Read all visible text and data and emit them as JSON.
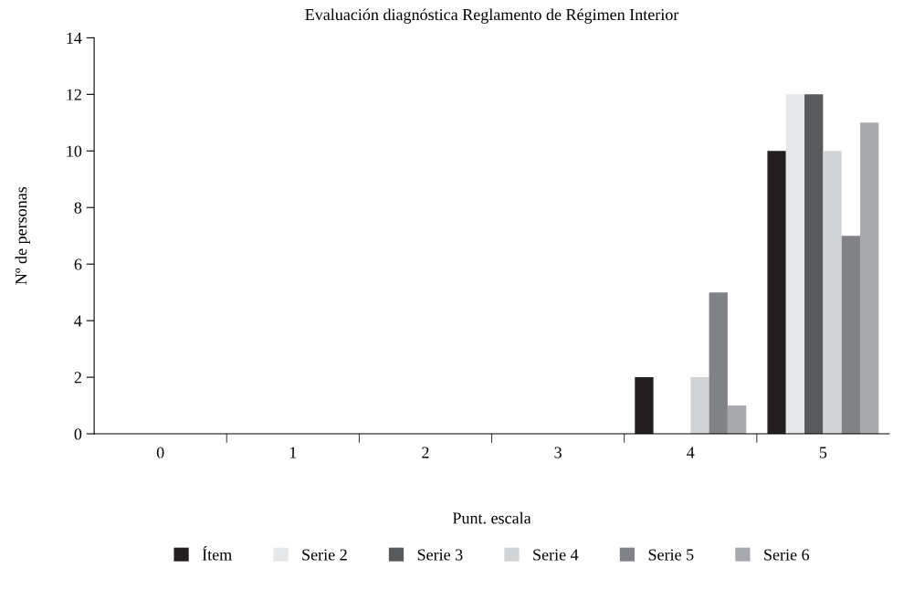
{
  "chart_data": {
    "type": "bar",
    "title": "Evaluación diagnóstica Reglamento de Régimen Interior",
    "xlabel": "Punt. escala",
    "ylabel": "Nº de personas",
    "categories": [
      "0",
      "1",
      "2",
      "3",
      "4",
      "5"
    ],
    "series": [
      {
        "name": "Ítem",
        "color": "#231f20",
        "values": [
          0,
          0,
          0,
          0,
          2,
          10
        ]
      },
      {
        "name": "Serie 2",
        "color": "#e6e7e8",
        "values": [
          0,
          0,
          0,
          0,
          0,
          12
        ]
      },
      {
        "name": "Serie 3",
        "color": "#58595b",
        "values": [
          0,
          0,
          0,
          0,
          0,
          12
        ]
      },
      {
        "name": "Serie 4",
        "color": "#d1d3d4",
        "values": [
          0,
          0,
          0,
          0,
          2,
          10
        ]
      },
      {
        "name": "Serie 5",
        "color": "#808285",
        "values": [
          0,
          0,
          0,
          0,
          5,
          7
        ]
      },
      {
        "name": "Serie 6",
        "color": "#a7a9ac",
        "values": [
          0,
          0,
          0,
          0,
          1,
          11
        ]
      }
    ],
    "ylim": [
      0,
      14
    ],
    "yticks": [
      0,
      2,
      4,
      6,
      8,
      10,
      12,
      14
    ],
    "grid": false,
    "legend": "bottom"
  }
}
